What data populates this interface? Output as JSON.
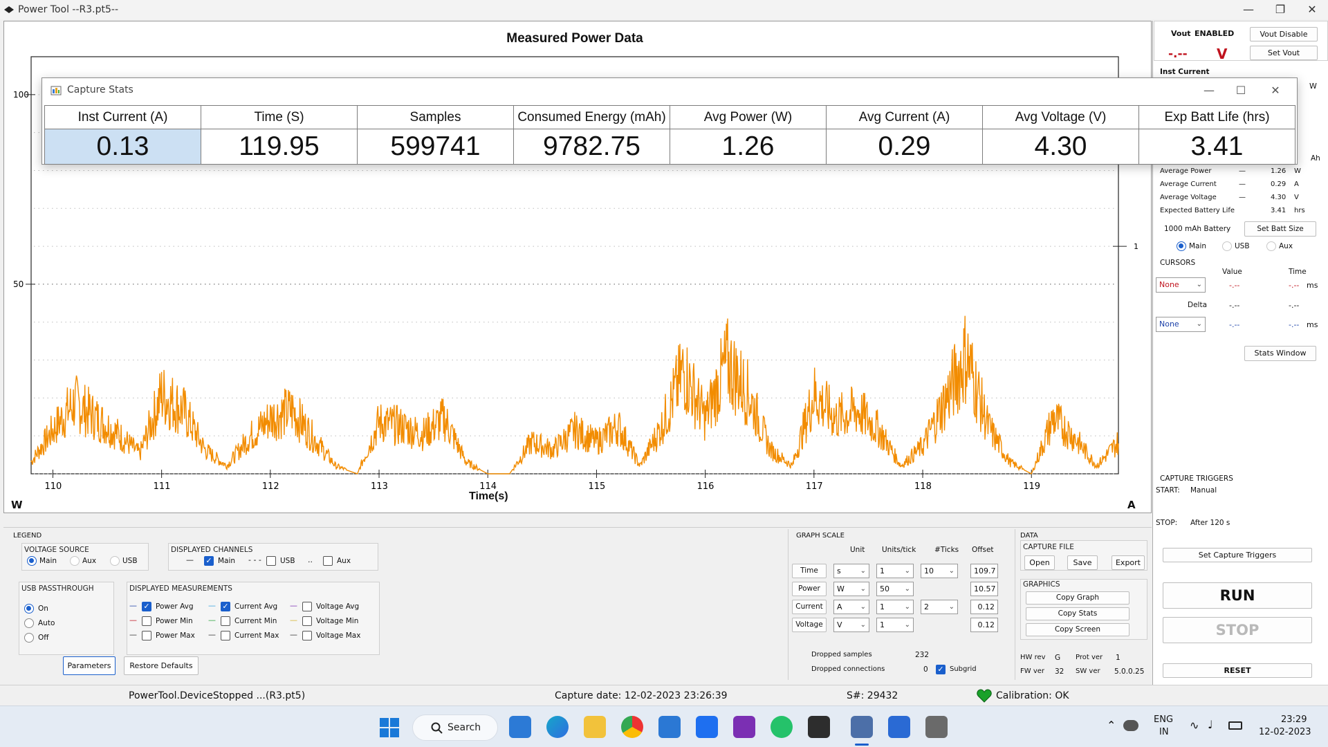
{
  "window": {
    "title": "Power Tool --R3.pt5--"
  },
  "graph": {
    "title": "Measured Power Data",
    "x_label": "Time(s)",
    "left_unit": "W",
    "right_unit": "A",
    "y_ticks": [
      "100",
      "50"
    ],
    "right_tick": "1",
    "x_ticks": [
      "110",
      "111",
      "112",
      "113",
      "114",
      "115",
      "116",
      "117",
      "118",
      "119"
    ]
  },
  "chart_data": {
    "type": "line",
    "title": "Measured Power Data",
    "xlabel": "Time(s)",
    "ylabel": "W",
    "xlim": [
      109.8,
      119.8
    ],
    "ylim": [
      0,
      110
    ],
    "series": [
      {
        "name": "Power Avg",
        "color": "#f28c00",
        "x": [
          109.8,
          110.0,
          110.2,
          110.4,
          110.6,
          110.8,
          111.0,
          111.2,
          111.4,
          111.6,
          111.8,
          112.0,
          112.2,
          112.4,
          112.6,
          112.8,
          113.0,
          113.2,
          113.4,
          113.6,
          113.8,
          114.0,
          114.2,
          114.4,
          114.6,
          114.8,
          115.0,
          115.2,
          115.4,
          115.6,
          115.8,
          116.0,
          116.2,
          116.4,
          116.6,
          116.8,
          117.0,
          117.2,
          117.4,
          117.6,
          117.8,
          118.0,
          118.2,
          118.4,
          118.6,
          118.8,
          119.0,
          119.2,
          119.4,
          119.6,
          119.8
        ],
        "y": [
          3,
          11,
          18,
          14,
          10,
          5,
          20,
          16,
          6,
          2,
          9,
          14,
          16,
          9,
          2,
          0,
          13,
          12,
          10,
          14,
          3,
          0,
          0,
          8,
          6,
          11,
          8,
          12,
          2,
          12,
          26,
          14,
          28,
          20,
          6,
          2,
          20,
          14,
          16,
          11,
          2,
          7,
          18,
          30,
          12,
          3,
          0,
          14,
          9,
          2,
          8
        ]
      }
    ]
  },
  "right": {
    "vout_label": "Vout",
    "vout_state": "ENABLED",
    "vout_disable": "Vout Disable",
    "set_vout": "Set Vout",
    "vout_value": "-.--",
    "vout_unit": "V",
    "inst_current": "Inst Current",
    "w_fragment": "W",
    "ah_fragment": "Ah",
    "stats": [
      {
        "label": "Average Power",
        "dash": "—",
        "value": "1.26",
        "unit": "W"
      },
      {
        "label": "Average Current",
        "dash": "—",
        "value": "0.29",
        "unit": "A"
      },
      {
        "label": "Average Voltage",
        "dash": "—",
        "value": "4.30",
        "unit": "V"
      },
      {
        "label": "Expected Battery Life",
        "dash": "",
        "value": "3.41",
        "unit": "hrs"
      }
    ],
    "battery_size": "1000",
    "battery_unit": "mAh Battery",
    "set_batt_size": "Set Batt Size",
    "channels": [
      "Main",
      "USB",
      "Aux"
    ],
    "cursors_title": "CURSORS",
    "value_hdr": "Value",
    "time_hdr": "Time",
    "cursor1": "None",
    "cursor2": "None",
    "delta": "Delta",
    "dash_val": "-.--",
    "ms": "ms",
    "stats_window": "Stats Window",
    "triggers_title": "CAPTURE TRIGGERS",
    "start_label": "START:",
    "start_value": "Manual",
    "stop_label": "STOP:",
    "stop_value": "After 120 s",
    "set_triggers": "Set Capture Triggers",
    "run": "RUN",
    "stop": "STOP",
    "reset": "RESET"
  },
  "stats_window": {
    "title": "Capture Stats",
    "headers": [
      "Inst Current (A)",
      "Time (S)",
      "Samples",
      "Consumed Energy (mAh)",
      "Avg Power (W)",
      "Avg Current (A)",
      "Avg Voltage (V)",
      "Exp Batt Life (hrs)"
    ],
    "values": [
      "0.13",
      "119.95",
      "599741",
      "9782.75",
      "1.26",
      "0.29",
      "4.30",
      "3.41"
    ]
  },
  "legend": {
    "title": "LEGEND",
    "voltage_source": "VOLTAGE SOURCE",
    "vs_options": [
      "Main",
      "Aux",
      "USB"
    ],
    "displayed_channels": "DISPLAYED CHANNELS",
    "dc_main": "Main",
    "dc_usb": "USB",
    "dc_aux": "Aux",
    "usb_passthrough": "USB PASSTHROUGH",
    "usb_options": [
      "On",
      "Auto",
      "Off"
    ],
    "displayed_measurements": "DISPLAYED MEASUREMENTS",
    "measurements": [
      "Power Avg",
      "Power Min",
      "Power Max",
      "Current Avg",
      "Current Min",
      "Current Max",
      "Voltage Avg",
      "Voltage Min",
      "Voltage Max"
    ],
    "parameters": "Parameters",
    "restore_defaults": "Restore Defaults"
  },
  "graph_scale": {
    "title": "GRAPH SCALE",
    "headers": [
      "Unit",
      "Units/tick",
      "#Ticks",
      "Offset"
    ],
    "rows": [
      {
        "name": "Time",
        "unit": "s",
        "units_tick": "1",
        "ticks": "10",
        "offset": "109.7"
      },
      {
        "name": "Power",
        "unit": "W",
        "units_tick": "50",
        "ticks": "",
        "offset": "10.57"
      },
      {
        "name": "Current",
        "unit": "A",
        "units_tick": "1",
        "ticks": "2",
        "offset": "0.12"
      },
      {
        "name": "Voltage",
        "unit": "V",
        "units_tick": "1",
        "ticks": "",
        "offset": "0.12"
      }
    ],
    "dropped_samples": "Dropped samples",
    "dropped_samples_val": "232",
    "dropped_connections": "Dropped connections",
    "dropped_connections_val": "0",
    "subgrid": "Subgrid"
  },
  "data_section": {
    "title": "DATA",
    "capture_file": "CAPTURE FILE",
    "open": "Open",
    "save": "Save",
    "export": "Export",
    "graphics": "GRAPHICS",
    "copy_graph": "Copy Graph",
    "copy_stats": "Copy Stats",
    "copy_screen": "Copy Screen",
    "hw_rev": "HW rev",
    "hw_rev_val": "G",
    "prot_ver": "Prot ver",
    "prot_ver_val": "1",
    "fw_ver": "FW ver",
    "fw_ver_val": "32",
    "sw_ver": "SW ver",
    "sw_ver_val": "5.0.0.25"
  },
  "status": {
    "device": "PowerTool.DeviceStopped ...(R3.pt5)",
    "capture_date": "Capture date: 12-02-2023 23:26:39",
    "serial": "S#: 29432",
    "calibration": "Calibration: OK"
  },
  "taskbar": {
    "search": "Search",
    "lang": "ENG",
    "region": "IN",
    "time": "23:29",
    "date": "12-02-2023"
  },
  "colors": {
    "trace": "#f28c00",
    "accent": "#1a5fcc",
    "calibration_heart": "#1aa12a"
  }
}
